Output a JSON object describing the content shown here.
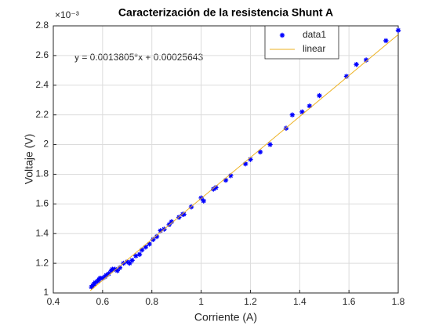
{
  "chart_data": {
    "type": "scatter",
    "title": "Caracterización de la resistencia Shunt A",
    "x_label": "Corriente (A)",
    "y_label": "Voltaje (V)",
    "y_multiplier": "×10⁻³",
    "annotation": "y = 0.0013805*x + 0.00025643",
    "xlim": [
      0.4,
      1.8
    ],
    "ylim": [
      1,
      2.8
    ],
    "xticks": [
      0.4,
      0.6,
      0.8,
      1,
      1.2,
      1.4,
      1.6,
      1.8
    ],
    "yticks": [
      1,
      1.2,
      1.4,
      1.6,
      1.8,
      2,
      2.2,
      2.4,
      2.6,
      2.8
    ],
    "grid": true,
    "legend": "northeast",
    "series": [
      {
        "name": "data1",
        "type": "scatter",
        "color": "#0000ff",
        "x": [
          0.555,
          0.56,
          0.565,
          0.57,
          0.58,
          0.585,
          0.59,
          0.6,
          0.61,
          0.615,
          0.625,
          0.635,
          0.64,
          0.65,
          0.66,
          0.67,
          0.685,
          0.7,
          0.71,
          0.72,
          0.735,
          0.75,
          0.76,
          0.775,
          0.79,
          0.805,
          0.82,
          0.835,
          0.85,
          0.87,
          0.88,
          0.91,
          0.925,
          0.93,
          0.96,
          1.0,
          1.01,
          1.05,
          1.06,
          1.1,
          1.12,
          1.18,
          1.2,
          1.24,
          1.28,
          1.345,
          1.37,
          1.41,
          1.44,
          1.48,
          1.59,
          1.63,
          1.67,
          1.75,
          1.8
        ],
        "values": [
          1.04,
          1.05,
          1.06,
          1.07,
          1.08,
          1.09,
          1.1,
          1.1,
          1.11,
          1.12,
          1.13,
          1.15,
          1.16,
          1.16,
          1.15,
          1.17,
          1.2,
          1.21,
          1.2,
          1.22,
          1.25,
          1.26,
          1.29,
          1.31,
          1.33,
          1.36,
          1.38,
          1.42,
          1.43,
          1.46,
          1.48,
          1.51,
          1.53,
          1.53,
          1.58,
          1.64,
          1.62,
          1.7,
          1.71,
          1.76,
          1.79,
          1.87,
          1.9,
          1.95,
          2.0,
          2.11,
          2.2,
          2.22,
          2.26,
          2.33,
          2.46,
          2.54,
          2.57,
          2.7,
          2.77
        ]
      },
      {
        "name": "linear",
        "type": "line",
        "color": "#edb120",
        "x": [
          0.55,
          1.8
        ],
        "values": [
          1.0157,
          2.7413
        ]
      }
    ]
  }
}
